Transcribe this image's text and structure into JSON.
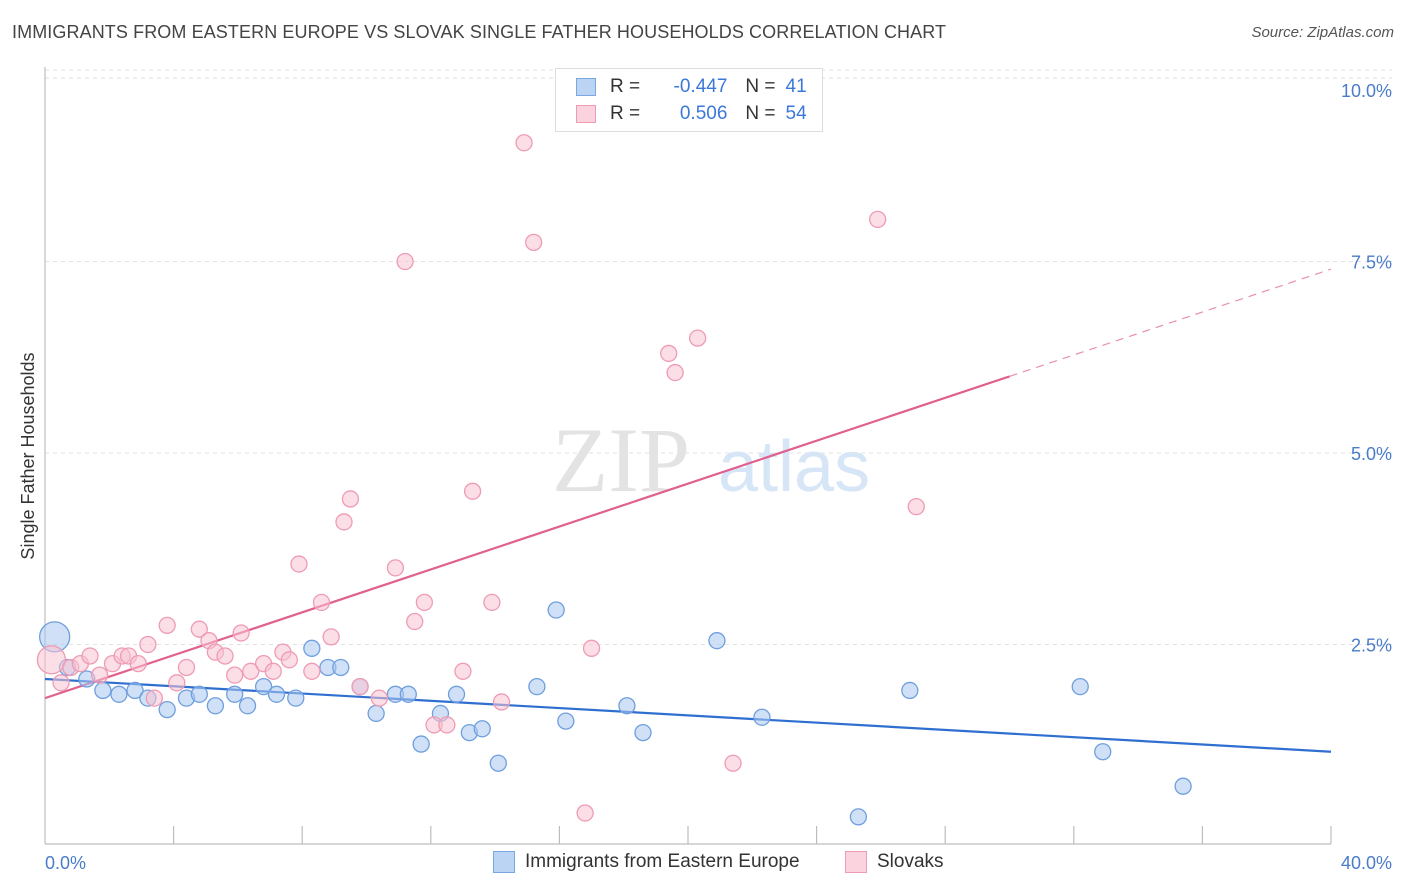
{
  "header": {
    "title": "IMMIGRANTS FROM EASTERN EUROPE VS SLOVAK SINGLE FATHER HOUSEHOLDS CORRELATION CHART",
    "source": "Source: ZipAtlas.com"
  },
  "watermark": {
    "zip": "ZIP",
    "atlas": "atlas"
  },
  "legend": {
    "rows": [
      {
        "r_label": "R =",
        "r_value": "-0.447",
        "n_label": "N =",
        "n_value": "41",
        "color": "#a9c8f0",
        "border": "#7aa7e0"
      },
      {
        "r_label": "R =",
        "r_value": "0.506",
        "n_label": "N =",
        "n_value": "54",
        "color": "#f7c3d2",
        "border": "#ee9bb4"
      }
    ]
  },
  "bottom_legend": {
    "series1": "Immigrants from Eastern Europe",
    "series2": "Slovaks"
  },
  "chart_data": {
    "type": "scatter",
    "title": "IMMIGRANTS FROM EASTERN EUROPE VS SLOVAK SINGLE FATHER HOUSEHOLDS CORRELATION CHART",
    "xlabel": "",
    "ylabel": "Single Father Households",
    "xlim": [
      0,
      40
    ],
    "ylim": [
      0,
      10
    ],
    "x_tick_labels": [
      "0.0%",
      "40.0%"
    ],
    "y_ticks": [
      2.5,
      5.0,
      7.5,
      10.0
    ],
    "y_tick_labels": [
      "2.5%",
      "5.0%",
      "7.5%",
      "10.0%"
    ],
    "grid": true,
    "series": [
      {
        "name": "Immigrants from Eastern Europe",
        "color": "#a9c8f0",
        "stroke": "#6f9fde",
        "line_color": "#2f6fd0",
        "trend": {
          "x0": 0,
          "y0": 2.05,
          "x1": 40,
          "y1": 1.1
        },
        "points": [
          [
            0.3,
            2.6
          ],
          [
            0.7,
            2.2
          ],
          [
            1.3,
            2.05
          ],
          [
            1.8,
            1.9
          ],
          [
            2.3,
            1.85
          ],
          [
            2.8,
            1.9
          ],
          [
            3.2,
            1.8
          ],
          [
            3.8,
            1.65
          ],
          [
            4.4,
            1.8
          ],
          [
            4.8,
            1.85
          ],
          [
            5.3,
            1.7
          ],
          [
            5.9,
            1.85
          ],
          [
            6.3,
            1.7
          ],
          [
            6.8,
            1.95
          ],
          [
            7.2,
            1.85
          ],
          [
            7.8,
            1.8
          ],
          [
            8.3,
            2.45
          ],
          [
            8.8,
            2.2
          ],
          [
            9.2,
            2.2
          ],
          [
            9.8,
            1.95
          ],
          [
            10.3,
            1.6
          ],
          [
            10.9,
            1.85
          ],
          [
            11.3,
            1.85
          ],
          [
            11.7,
            1.2
          ],
          [
            12.3,
            1.6
          ],
          [
            12.8,
            1.85
          ],
          [
            13.2,
            1.35
          ],
          [
            13.6,
            1.4
          ],
          [
            14.1,
            0.95
          ],
          [
            15.3,
            1.95
          ],
          [
            15.9,
            2.95
          ],
          [
            16.2,
            1.5
          ],
          [
            18.1,
            1.7
          ],
          [
            18.6,
            1.35
          ],
          [
            20.9,
            2.55
          ],
          [
            22.3,
            1.55
          ],
          [
            25.3,
            0.25
          ],
          [
            26.9,
            1.9
          ],
          [
            32.2,
            1.95
          ],
          [
            32.9,
            1.1
          ],
          [
            35.4,
            0.65
          ]
        ]
      },
      {
        "name": "Slovaks",
        "color": "#f7c3d2",
        "stroke": "#ee9bb4",
        "line_color": "#e0608e",
        "trend": {
          "x0": 0,
          "y0": 1.8,
          "x1": 30,
          "y1": 6.0
        },
        "trend_extension": {
          "x0": 30,
          "y0": 6.0,
          "x1": 40,
          "y1": 7.4
        },
        "points": [
          [
            0.2,
            2.3
          ],
          [
            0.5,
            2.0
          ],
          [
            0.8,
            2.2
          ],
          [
            1.1,
            2.25
          ],
          [
            1.4,
            2.35
          ],
          [
            1.7,
            2.1
          ],
          [
            2.1,
            2.25
          ],
          [
            2.4,
            2.35
          ],
          [
            2.6,
            2.35
          ],
          [
            2.9,
            2.25
          ],
          [
            3.2,
            2.5
          ],
          [
            3.4,
            1.8
          ],
          [
            3.8,
            2.75
          ],
          [
            4.1,
            2.0
          ],
          [
            4.4,
            2.2
          ],
          [
            4.8,
            2.7
          ],
          [
            5.1,
            2.55
          ],
          [
            5.3,
            2.4
          ],
          [
            5.6,
            2.35
          ],
          [
            5.9,
            2.1
          ],
          [
            6.1,
            2.65
          ],
          [
            6.4,
            2.15
          ],
          [
            6.8,
            2.25
          ],
          [
            7.1,
            2.15
          ],
          [
            7.4,
            2.4
          ],
          [
            7.6,
            2.3
          ],
          [
            7.9,
            3.55
          ],
          [
            8.3,
            2.15
          ],
          [
            8.6,
            3.05
          ],
          [
            8.9,
            2.6
          ],
          [
            9.3,
            4.1
          ],
          [
            9.5,
            4.4
          ],
          [
            9.8,
            1.95
          ],
          [
            10.4,
            1.8
          ],
          [
            10.9,
            3.5
          ],
          [
            11.2,
            7.5
          ],
          [
            11.5,
            2.8
          ],
          [
            11.8,
            3.05
          ],
          [
            12.1,
            1.45
          ],
          [
            12.5,
            1.45
          ],
          [
            13.0,
            2.15
          ],
          [
            13.3,
            4.5
          ],
          [
            13.9,
            3.05
          ],
          [
            14.2,
            1.75
          ],
          [
            14.9,
            9.05
          ],
          [
            15.2,
            7.75
          ],
          [
            16.8,
            0.3
          ],
          [
            17.0,
            2.45
          ],
          [
            19.4,
            6.3
          ],
          [
            19.6,
            6.05
          ],
          [
            20.3,
            6.5
          ],
          [
            21.4,
            0.95
          ],
          [
            25.9,
            8.05
          ],
          [
            27.1,
            4.3
          ]
        ]
      }
    ]
  }
}
